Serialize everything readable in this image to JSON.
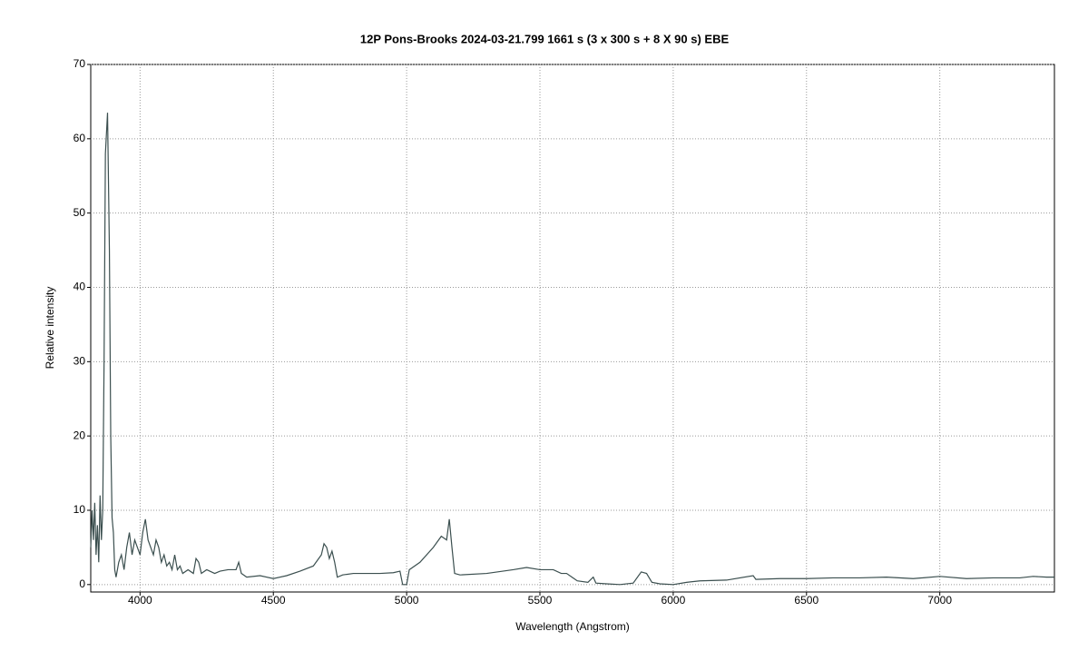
{
  "chart_data": {
    "type": "line",
    "title": "12P Pons-Brooks   2024-03-21.799   1661 s (3 x 300 s + 8 X 90 s)   EBE",
    "x_label": "Wavelength (Angstrom)",
    "y_label": "Relative intensity",
    "xlim": [
      3815,
      7430
    ],
    "ylim": [
      -1,
      70
    ],
    "xticks": [
      4000,
      4500,
      5000,
      5500,
      6000,
      6500,
      7000
    ],
    "yticks": [
      0,
      10,
      20,
      30,
      40,
      50,
      60,
      70
    ],
    "grid": true,
    "x": [
      3815,
      3820,
      3825,
      3830,
      3835,
      3840,
      3845,
      3850,
      3855,
      3860,
      3865,
      3870,
      3878,
      3885,
      3890,
      3895,
      3900,
      3905,
      3910,
      3920,
      3930,
      3940,
      3950,
      3960,
      3970,
      3980,
      3990,
      4000,
      4010,
      4020,
      4030,
      4040,
      4050,
      4060,
      4070,
      4080,
      4090,
      4100,
      4110,
      4120,
      4130,
      4140,
      4150,
      4160,
      4180,
      4200,
      4210,
      4220,
      4230,
      4250,
      4280,
      4300,
      4330,
      4360,
      4370,
      4380,
      4400,
      4450,
      4500,
      4550,
      4600,
      4650,
      4680,
      4690,
      4700,
      4710,
      4720,
      4730,
      4740,
      4760,
      4800,
      4850,
      4900,
      4950,
      4975,
      4985,
      5000,
      5010,
      5050,
      5100,
      5130,
      5150,
      5160,
      5170,
      5180,
      5200,
      5300,
      5400,
      5450,
      5500,
      5550,
      5580,
      5600,
      5620,
      5640,
      5680,
      5700,
      5710,
      5750,
      5800,
      5850,
      5880,
      5900,
      5920,
      5950,
      6000,
      6050,
      6100,
      6200,
      6300,
      6310,
      6400,
      6500,
      6600,
      6700,
      6800,
      6900,
      7000,
      7100,
      7200,
      7300,
      7350,
      7400,
      7430
    ],
    "series": [
      {
        "name": "12P Pons-Brooks",
        "color": "#3b4f4f",
        "values": [
          5,
          10,
          6,
          11,
          4,
          8,
          3,
          12,
          6,
          10,
          30,
          58,
          63.5,
          45,
          20,
          9,
          7,
          2,
          1,
          3,
          4,
          2,
          5,
          7,
          4,
          6,
          5,
          4,
          7,
          8.8,
          6,
          5,
          4,
          6,
          5,
          3,
          4,
          2.5,
          3,
          2,
          4,
          2,
          2.5,
          1.5,
          2,
          1.5,
          3.5,
          3,
          1.5,
          2,
          1.5,
          1.8,
          2,
          2,
          3,
          1.5,
          1,
          1.2,
          0.8,
          1.2,
          1.8,
          2.5,
          4,
          5.5,
          5,
          3.5,
          4.5,
          3,
          1,
          1.3,
          1.5,
          1.5,
          1.5,
          1.6,
          1.8,
          0,
          0,
          2,
          3,
          5,
          6.5,
          6,
          8.8,
          5,
          1.5,
          1.3,
          1.5,
          2,
          2.3,
          2,
          2,
          1.5,
          1.5,
          1,
          0.5,
          0.3,
          1,
          0.2,
          0.1,
          0,
          0.2,
          1.7,
          1.5,
          0.3,
          0.1,
          0,
          0.3,
          0.5,
          0.6,
          1.2,
          0.7,
          0.8,
          0.8,
          0.9,
          0.9,
          1,
          0.8,
          1.1,
          0.8,
          0.9,
          0.9,
          1.1,
          1,
          1
        ]
      }
    ]
  }
}
